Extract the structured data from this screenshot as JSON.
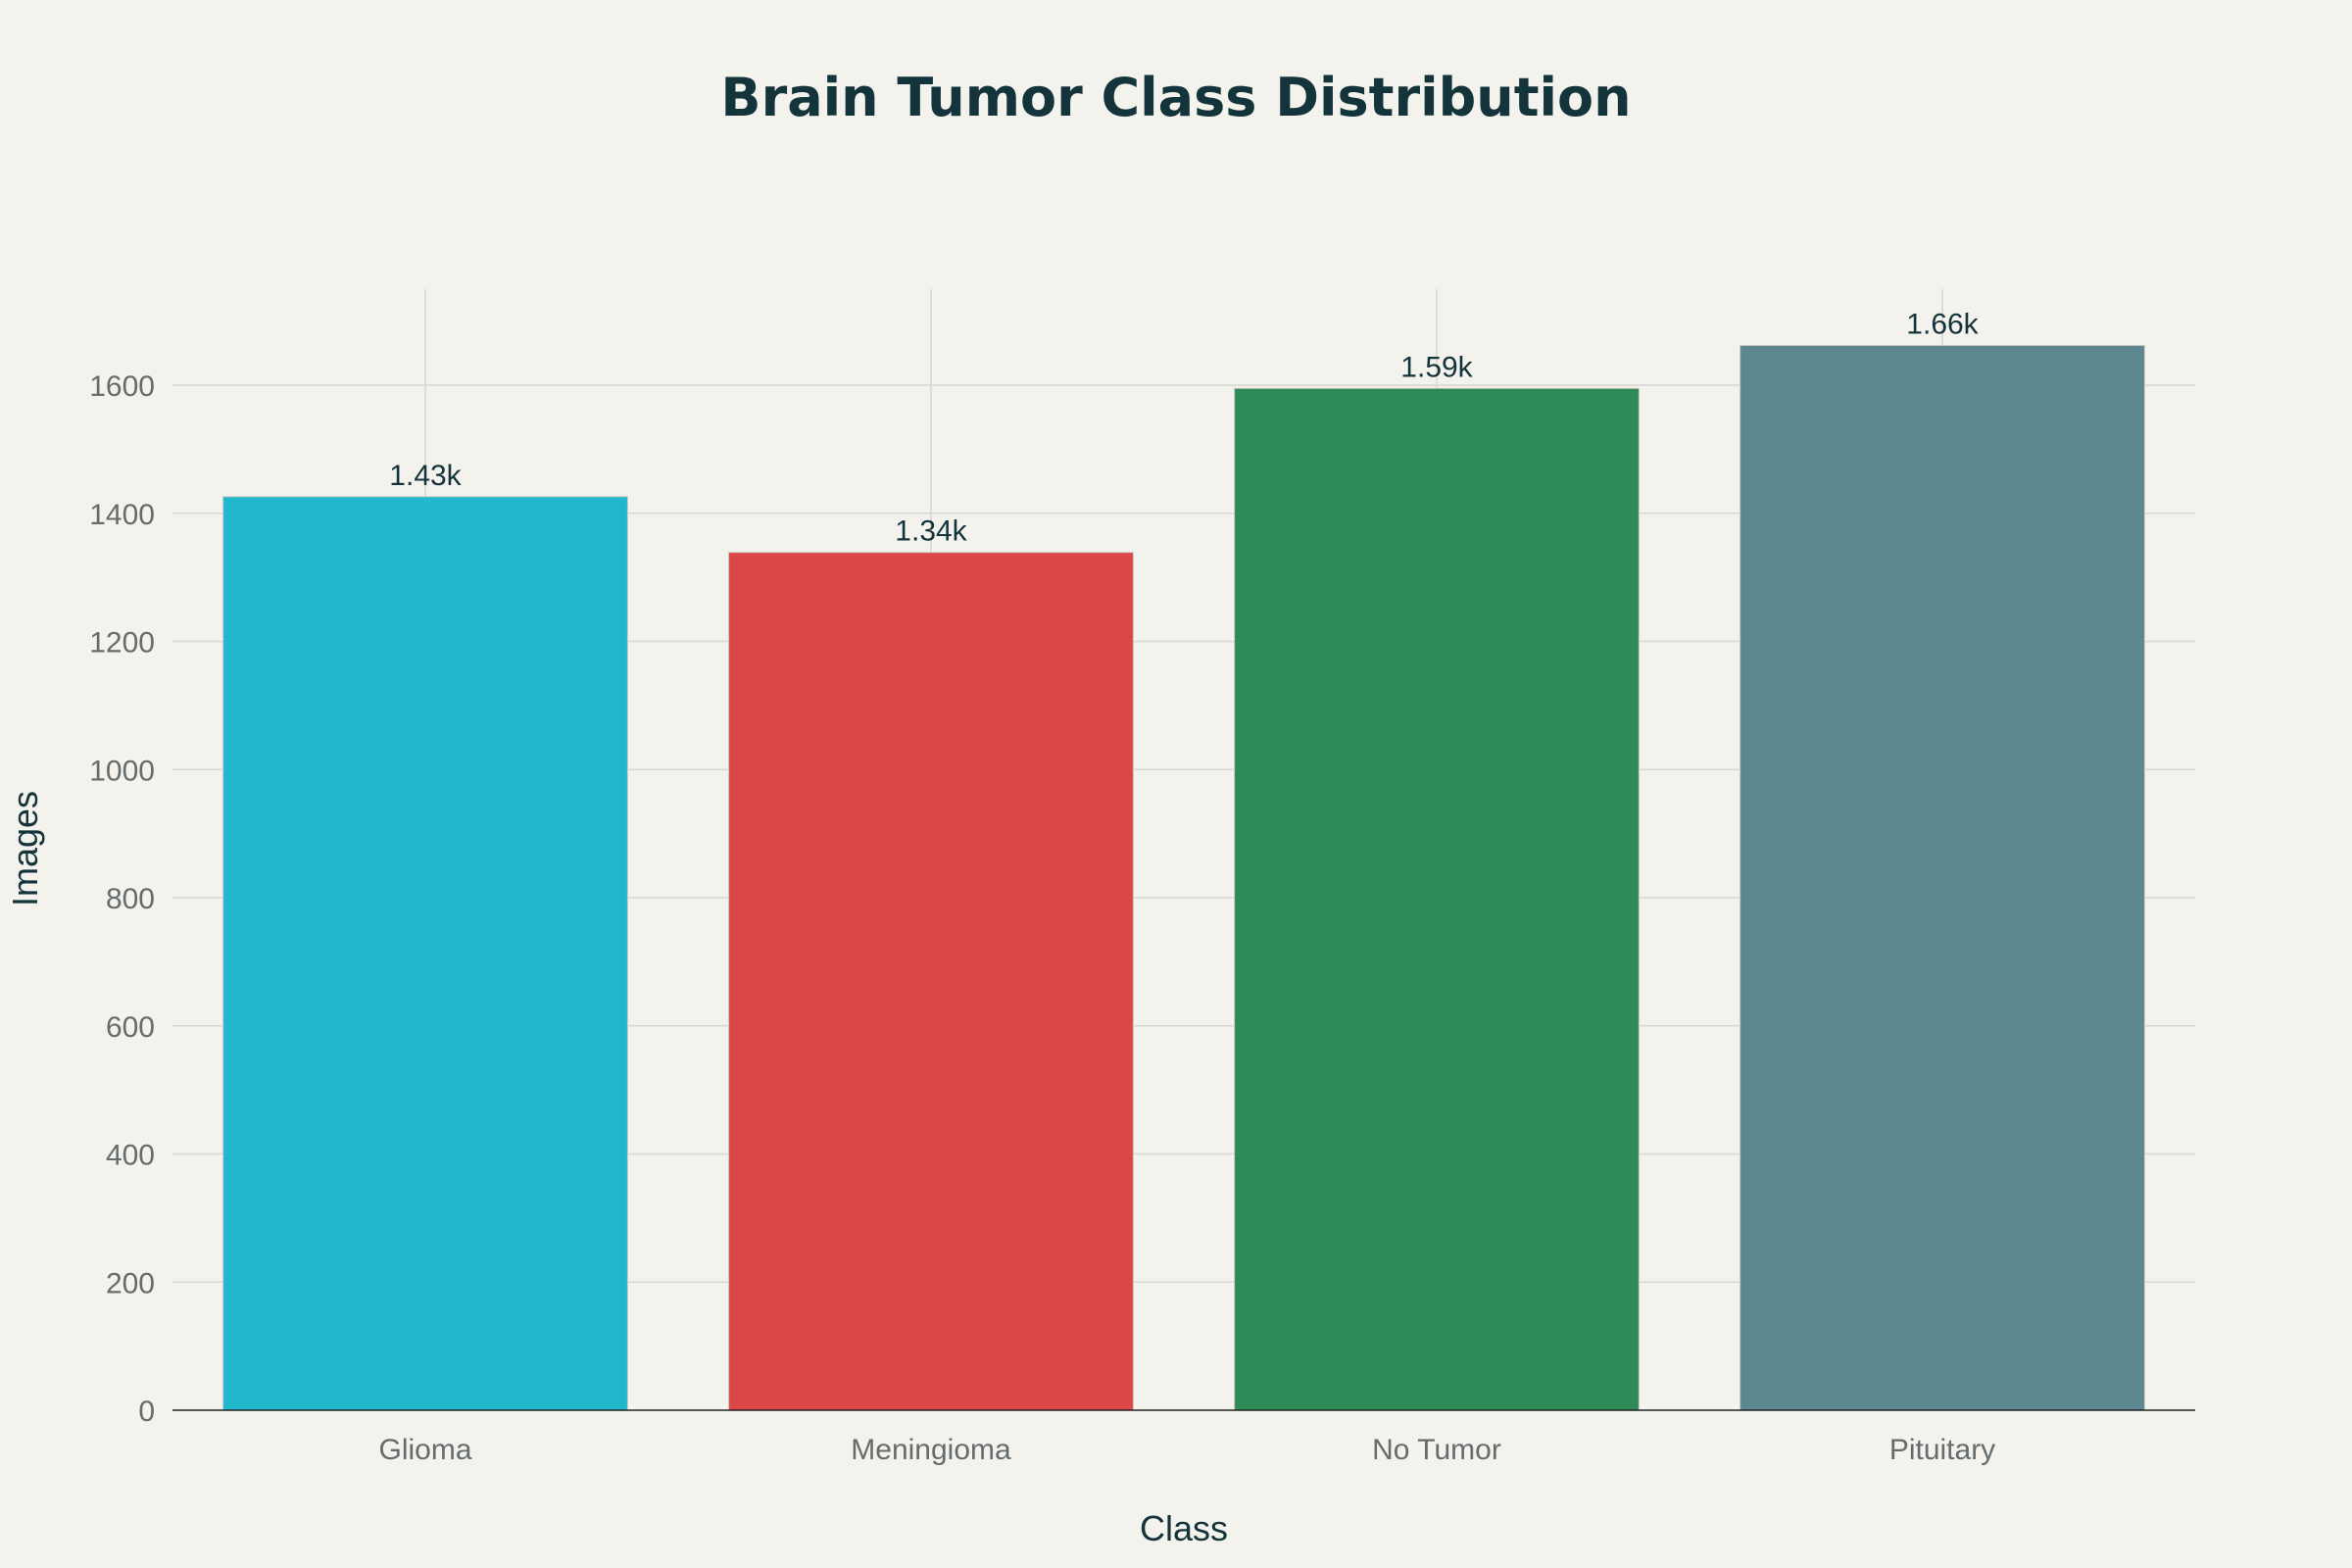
{
  "chart_data": {
    "type": "bar",
    "title": "Brain Tumor Class Distribution",
    "xlabel": "Class",
    "ylabel": "Images",
    "categories": [
      "Glioma",
      "Meningioma",
      "No Tumor",
      "Pituitary"
    ],
    "values": [
      1426,
      1339,
      1595,
      1662
    ],
    "data_labels": [
      "1.43k",
      "1.34k",
      "1.59k",
      "1.66k"
    ],
    "colors": [
      "#21b8cd",
      "#db4647",
      "#2e8b58",
      "#5d878f"
    ],
    "ylim": [
      0,
      1750
    ],
    "yticks": [
      0,
      200,
      400,
      600,
      800,
      1000,
      1200,
      1400,
      1600
    ],
    "grid": true,
    "legend": "none"
  }
}
